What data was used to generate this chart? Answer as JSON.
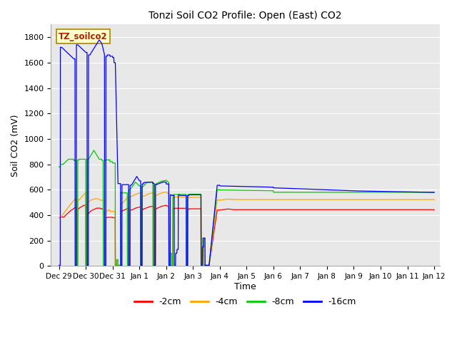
{
  "title": "Tonzi Soil CO2 Profile: Open (East) CO2",
  "ylabel": "Soil CO2 (mV)",
  "xlabel": "Time",
  "ylim": [
    0,
    1900
  ],
  "yticks": [
    0,
    200,
    400,
    600,
    800,
    1000,
    1200,
    1400,
    1600,
    1800
  ],
  "colors": {
    "2cm": "#ff0000",
    "4cm": "#ffa500",
    "8cm": "#00cc00",
    "16cm": "#0000ff"
  },
  "legend_labels": [
    "-2cm",
    "-4cm",
    "-8cm",
    "-16cm"
  ],
  "annotation_text": "TZ_soilco2",
  "annotation_color": "#aa2200",
  "annotation_bg": "#ffffcc",
  "annotation_border": "#aa8800",
  "x_tick_labels": [
    "Dec 29",
    "Dec 30",
    "Dec 31",
    "Jan 1",
    "Jan 2",
    "Jan 3",
    "Jan 4",
    "Jan 5",
    "Jan 6",
    "Jan 7",
    "Jan 8",
    "Jan 9",
    "Jan 10",
    "Jan 11",
    "Jan 12"
  ]
}
